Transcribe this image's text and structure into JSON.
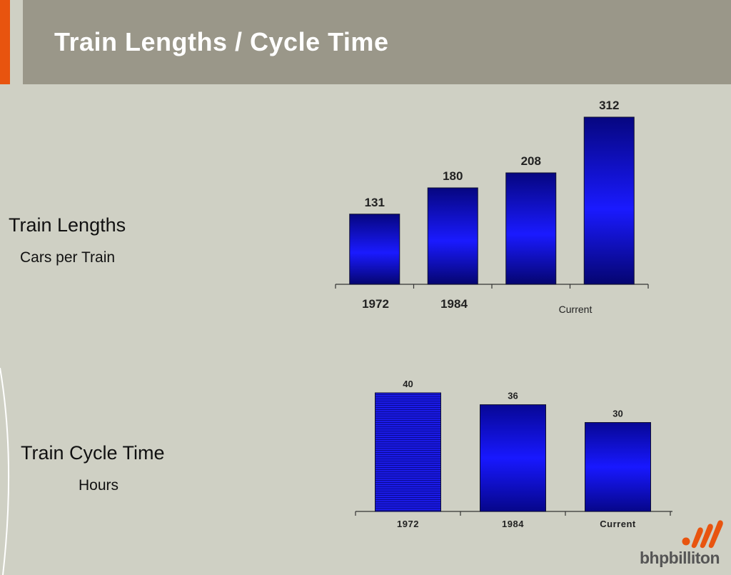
{
  "slide": {
    "title": "Train Lengths / Cycle Time",
    "accent_color": "#e8540f"
  },
  "labels": {
    "chart1_main": "Train Lengths",
    "chart1_sub": "Cars per Train",
    "chart2_main": "Train Cycle Time",
    "chart2_sub": "Hours"
  },
  "logo": {
    "text": "bhpbilliton",
    "color": "#e8540f",
    "icon": "bhp-billiton-logo-icon"
  },
  "chart_data": [
    {
      "type": "bar",
      "title": "",
      "xlabel": "",
      "ylabel": "",
      "categories": [
        "1972",
        "1984",
        "",
        "Current"
      ],
      "values": [
        131,
        180,
        208,
        312
      ],
      "ylim": [
        0,
        312
      ],
      "grid": false,
      "bar_color": "#1414e6"
    },
    {
      "type": "bar",
      "title": "",
      "xlabel": "",
      "ylabel": "",
      "categories": [
        "1972",
        "1984",
        "Current"
      ],
      "values": [
        40,
        36,
        30
      ],
      "ylim": [
        0,
        40
      ],
      "grid": false,
      "bar_color": "#1414e6"
    }
  ]
}
